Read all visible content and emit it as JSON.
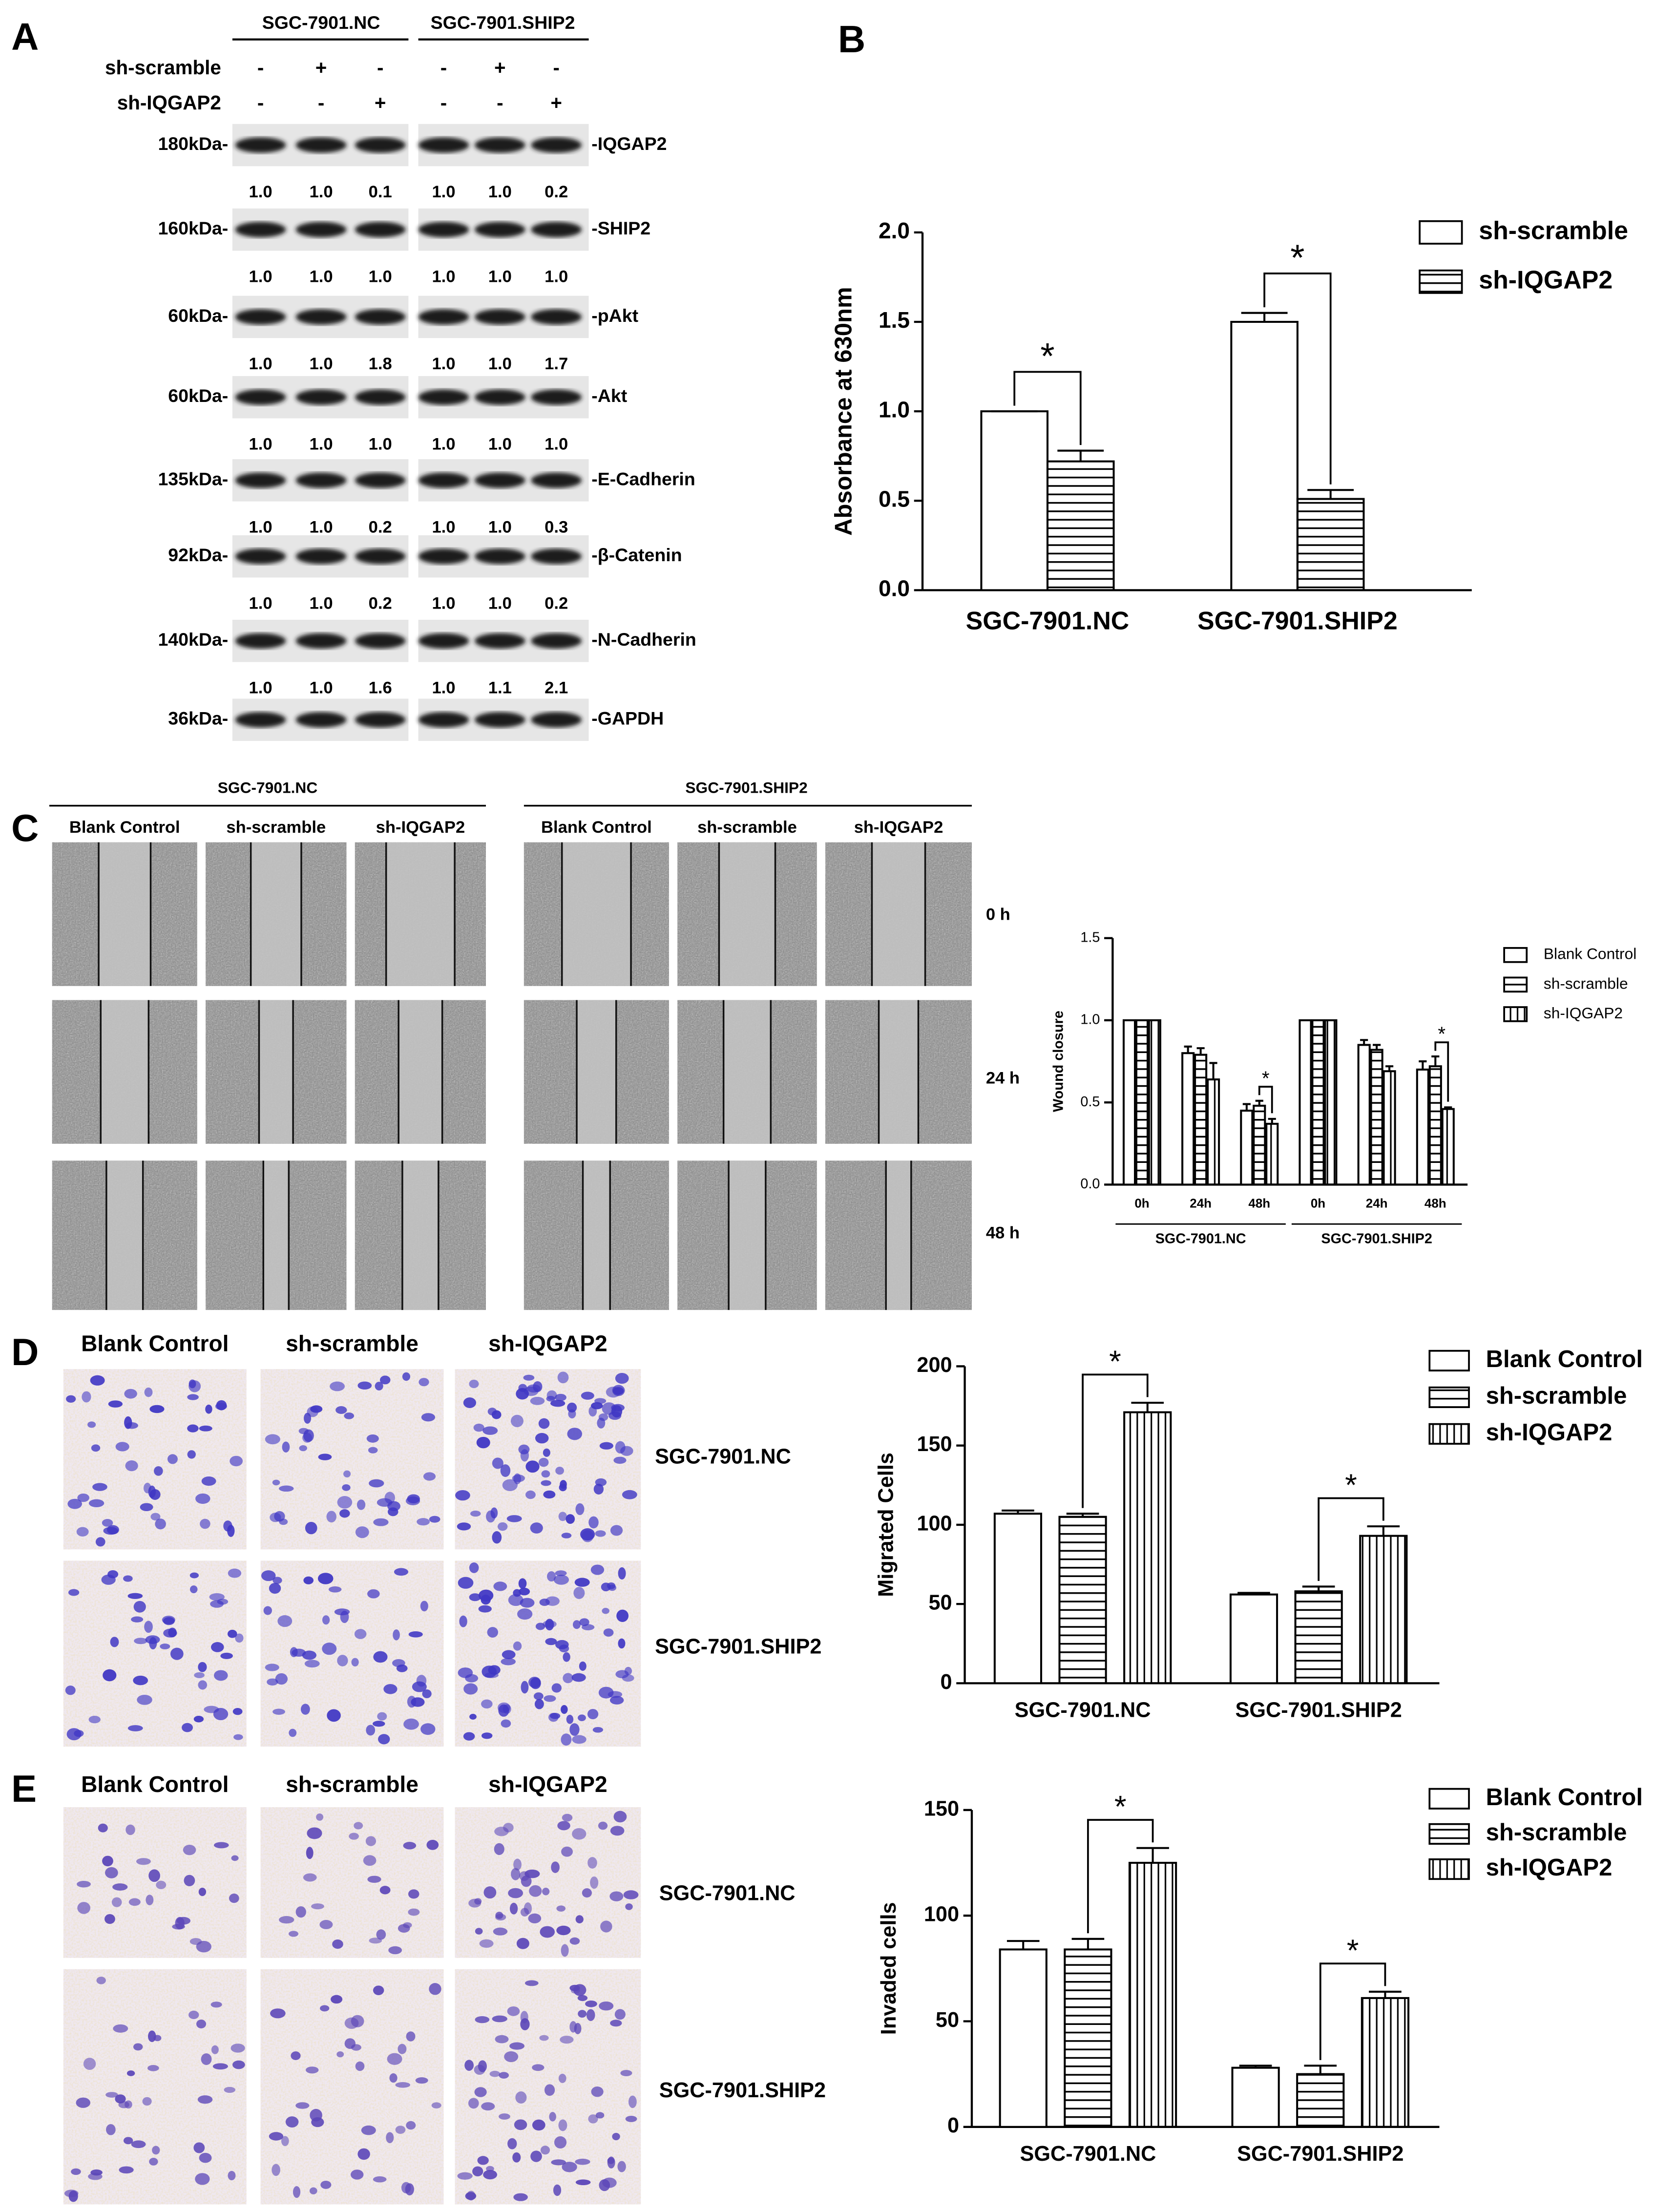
{
  "panel_labels": [
    "A",
    "B",
    "C",
    "D",
    "E"
  ],
  "western_blot": {
    "groups": [
      "SGC-7901.NC",
      "SGC-7901.SHIP2"
    ],
    "treatments": [
      {
        "label": "sh-scramble",
        "signs": [
          "-",
          "+",
          "-",
          "-",
          "+",
          "-"
        ]
      },
      {
        "label": "sh-IQGAP2",
        "signs": [
          "-",
          "-",
          "+",
          "-",
          "-",
          "+"
        ]
      }
    ],
    "proteins": [
      {
        "size": "180kDa-",
        "name": "-IQGAP2",
        "ratios": [
          "1.0",
          "1.0",
          "0.1",
          "1.0",
          "1.0",
          "0.2"
        ]
      },
      {
        "size": "160kDa-",
        "name": "-SHIP2",
        "ratios": [
          "1.0",
          "1.0",
          "1.0",
          "1.0",
          "1.0",
          "1.0"
        ]
      },
      {
        "size": "60kDa-",
        "name": "-pAkt",
        "ratios": [
          "1.0",
          "1.0",
          "1.8",
          "1.0",
          "1.0",
          "1.7"
        ]
      },
      {
        "size": "60kDa-",
        "name": "-Akt",
        "ratios": [
          "1.0",
          "1.0",
          "1.0",
          "1.0",
          "1.0",
          "1.0"
        ]
      },
      {
        "size": "135kDa-",
        "name": "-E-Cadherin",
        "ratios": [
          "1.0",
          "1.0",
          "0.2",
          "1.0",
          "1.0",
          "0.3"
        ]
      },
      {
        "size": "92kDa-",
        "name": "-β-Catenin",
        "ratios": [
          "1.0",
          "1.0",
          "0.2",
          "1.0",
          "1.0",
          "0.2"
        ]
      },
      {
        "size": "140kDa-",
        "name": "-N-Cadherin",
        "ratios": [
          "1.0",
          "1.0",
          "1.6",
          "1.0",
          "1.1",
          "2.1"
        ]
      },
      {
        "size": "36kDa-",
        "name": "-GAPDH"
      }
    ]
  },
  "wound_healing": {
    "groups": [
      "SGC-7901.NC",
      "SGC-7901.SHIP2"
    ],
    "columns": [
      "Blank Control",
      "sh-scramble",
      "sh-IQGAP2"
    ],
    "times": [
      "0 h",
      "24 h",
      "48 h"
    ]
  },
  "transwell_migration": {
    "columns": [
      "Blank Control",
      "sh-scramble",
      "sh-IQGAP2"
    ],
    "rows": [
      "SGC-7901.NC",
      "SGC-7901.SHIP2"
    ]
  },
  "transwell_invasion": {
    "columns": [
      "Blank Control",
      "sh-scramble",
      "sh-IQGAP2"
    ],
    "rows": [
      "SGC-7901.NC",
      "SGC-7901.SHIP2"
    ]
  },
  "chart_data": [
    {
      "type": "bar",
      "y_label": "Absorbance at 630nm",
      "categories": [
        "SGC-7901.NC",
        "SGC-7901.SHIP2"
      ],
      "series": [
        {
          "name": "sh-scramble",
          "hatch": "none",
          "values": [
            1.0,
            1.5
          ],
          "errors": [
            0,
            0.05
          ]
        },
        {
          "name": "sh-IQGAP2",
          "hatch": "horizontal",
          "values": [
            0.72,
            0.51
          ],
          "errors": [
            0.06,
            0.05
          ]
        }
      ],
      "ylim": [
        0,
        2.0
      ],
      "yticks": [
        {
          "value": 0,
          "label": "0.0"
        },
        {
          "value": 0.5,
          "label": "0.5"
        },
        {
          "value": 1.0,
          "label": "1.0"
        },
        {
          "value": 1.5,
          "label": "1.5"
        },
        {
          "value": 2.0,
          "label": "2.0"
        }
      ],
      "annotations": [
        "*",
        "*"
      ],
      "legend": "upper right"
    },
    {
      "type": "bar",
      "y_label": "Wound closure",
      "categories": [
        "0h",
        "24h",
        "48h",
        "0h",
        "24h",
        "48h"
      ],
      "groups": [
        "SGC-7901.NC",
        "SGC-7901.SHIP2"
      ],
      "series": [
        {
          "name": "Blank Control",
          "hatch": "none",
          "values": [
            1.0,
            0.8,
            0.45,
            1.0,
            0.85,
            0.7
          ],
          "errors": [
            0,
            0.04,
            0.04,
            0,
            0.03,
            0.05
          ]
        },
        {
          "name": "sh-scramble",
          "hatch": "horizontal",
          "values": [
            1.0,
            0.79,
            0.48,
            1.0,
            0.82,
            0.72
          ],
          "errors": [
            0,
            0.04,
            0.03,
            0,
            0.03,
            0.06
          ]
        },
        {
          "name": "sh-IQGAP2",
          "hatch": "vertical",
          "values": [
            1.0,
            0.64,
            0.37,
            1.0,
            0.69,
            0.46
          ],
          "errors": [
            0,
            0.1,
            0.03,
            0,
            0.03,
            0.01
          ]
        }
      ],
      "ylim": [
        0,
        1.5
      ],
      "yticks": [
        {
          "value": 0,
          "label": "0.0"
        },
        {
          "value": 0.5,
          "label": "0.5"
        },
        {
          "value": 1.0,
          "label": "1.0"
        },
        {
          "value": 1.5,
          "label": "1.5"
        }
      ],
      "annotations": [
        "*",
        "*"
      ],
      "legend": "upper right"
    },
    {
      "type": "bar",
      "y_label": "Migrated Cells",
      "categories": [
        "SGC-7901.NC",
        "SGC-7901.SHIP2"
      ],
      "series": [
        {
          "name": "Blank Control",
          "hatch": "none",
          "values": [
            107,
            56
          ],
          "errors": [
            2,
            1
          ]
        },
        {
          "name": "sh-scramble",
          "hatch": "horizontal",
          "values": [
            105,
            58
          ],
          "errors": [
            2,
            3
          ]
        },
        {
          "name": "sh-IQGAP2",
          "hatch": "vertical",
          "values": [
            171,
            93
          ],
          "errors": [
            6,
            6
          ]
        }
      ],
      "ylim": [
        0,
        200
      ],
      "yticks": [
        0,
        50,
        100,
        150,
        200
      ],
      "annotations": [
        "*",
        "*"
      ],
      "legend": "upper right"
    },
    {
      "type": "bar",
      "y_label": "Invaded cells",
      "categories": [
        "SGC-7901.NC",
        "SGC-7901.SHIP2"
      ],
      "series": [
        {
          "name": "Blank Control",
          "hatch": "none",
          "values": [
            84,
            28
          ],
          "errors": [
            4,
            1
          ]
        },
        {
          "name": "sh-scramble",
          "hatch": "horizontal",
          "values": [
            84,
            25
          ],
          "errors": [
            5,
            4
          ]
        },
        {
          "name": "sh-IQGAP2",
          "hatch": "vertical",
          "values": [
            125,
            61
          ],
          "errors": [
            7,
            3
          ]
        }
      ],
      "ylim": [
        0,
        150
      ],
      "yticks": [
        0,
        50,
        100,
        150
      ],
      "annotations": [
        "*",
        "*"
      ],
      "legend": "upper right"
    }
  ]
}
